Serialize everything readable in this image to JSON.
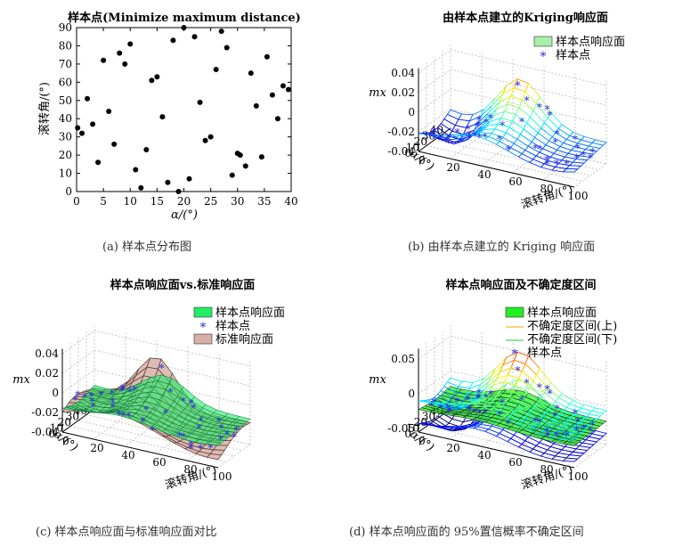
{
  "figure": {
    "captions": {
      "a": "(a) 样本点分布图",
      "b": "(b) 由样本点建立的 Kriging 响应面",
      "c": "(c) 样本点响应面与标准响应面对比",
      "d": "(d) 样本点响应面的 95%置信概率不确定区间"
    }
  },
  "chart_data": [
    {
      "id": "a",
      "type": "scatter",
      "title": "样本点(Minimize maximum distance)",
      "xlabel": "α/(°)",
      "ylabel": "滚转角/(°)",
      "xlim": [
        0,
        40
      ],
      "ylim": [
        0,
        90
      ],
      "xticks": [
        0,
        5,
        10,
        15,
        20,
        25,
        30,
        35,
        40
      ],
      "yticks": [
        0,
        10,
        20,
        30,
        40,
        50,
        60,
        70,
        80,
        90
      ],
      "color": "#000000",
      "points": [
        [
          0.2,
          35
        ],
        [
          1.0,
          32
        ],
        [
          2.0,
          51
        ],
        [
          3.0,
          37
        ],
        [
          4.0,
          16
        ],
        [
          5.0,
          72
        ],
        [
          6.0,
          44
        ],
        [
          7.0,
          26
        ],
        [
          8.0,
          76
        ],
        [
          9.0,
          70
        ],
        [
          10.0,
          81
        ],
        [
          11.0,
          12
        ],
        [
          12.0,
          2
        ],
        [
          13.0,
          23
        ],
        [
          14.0,
          61
        ],
        [
          15.0,
          63
        ],
        [
          16.0,
          41
        ],
        [
          17.0,
          5
        ],
        [
          18.0,
          83
        ],
        [
          19.0,
          0
        ],
        [
          20.0,
          90
        ],
        [
          21.0,
          7
        ],
        [
          22.0,
          85
        ],
        [
          23.0,
          49
        ],
        [
          24.0,
          28
        ],
        [
          25.0,
          30
        ],
        [
          26.0,
          67
        ],
        [
          27.0,
          88
        ],
        [
          28.0,
          79
        ],
        [
          29.0,
          9
        ],
        [
          30.0,
          21
        ],
        [
          30.5,
          20
        ],
        [
          31.5,
          14
        ],
        [
          32.5,
          65
        ],
        [
          33.5,
          47
        ],
        [
          34.5,
          19
        ],
        [
          35.5,
          74
        ],
        [
          36.5,
          53
        ],
        [
          37.5,
          40
        ],
        [
          38.5,
          58
        ],
        [
          39.5,
          56
        ]
      ]
    },
    {
      "id": "b",
      "type": "surface3d",
      "title": "由样本点建立的Kriging响应面",
      "zlabel": "mx",
      "xlabel": "滚转角/(°)",
      "ylabel": "α/(°)",
      "xticks": [
        0,
        20,
        40,
        60,
        80,
        100
      ],
      "yticks": [
        0,
        10,
        20,
        30,
        40
      ],
      "zticks": [
        -0.04,
        -0.02,
        0,
        0.02,
        0.04
      ],
      "zlim": [
        -0.04,
        0.045
      ],
      "legend": [
        "样本点响应面",
        "样本点"
      ],
      "legend_colors": [
        "#a8f0a8",
        "#2b2bd8"
      ]
    },
    {
      "id": "c",
      "type": "surface3d",
      "title": "样本点响应面vs.标准响应面",
      "zlabel": "mx",
      "xlabel": "滚转角/(°)",
      "ylabel": "α/(°)",
      "xticks": [
        0,
        20,
        40,
        60,
        80,
        100
      ],
      "yticks": [
        0,
        10,
        20,
        30,
        40
      ],
      "zticks": [
        -0.04,
        -0.02,
        0,
        0.02,
        0.04
      ],
      "zlim": [
        -0.04,
        0.045
      ],
      "legend": [
        "样本点响应面",
        "样本点",
        "标准响应面"
      ],
      "legend_colors": [
        "#22ee66",
        "#2b2bd8",
        "#d6b0a8"
      ]
    },
    {
      "id": "d",
      "type": "surface3d",
      "title": "样本点响应面及不确定度区间",
      "zlabel": "mx",
      "xlabel": "滚转角/(°)",
      "ylabel": "α/(°)",
      "xticks": [
        0,
        20,
        40,
        60,
        80,
        100
      ],
      "yticks": [
        0,
        10,
        20,
        30,
        40
      ],
      "zticks": [
        -0.05,
        0,
        0.05
      ],
      "zlim": [
        -0.055,
        0.065
      ],
      "legend": [
        "样本点响应面",
        "不确定度区间(上)",
        "不确定度区间(下)",
        "样本点"
      ],
      "legend_colors": [
        "#22ee22",
        "#ffd080",
        "#90e0a0",
        "#2b2bd8"
      ]
    }
  ]
}
